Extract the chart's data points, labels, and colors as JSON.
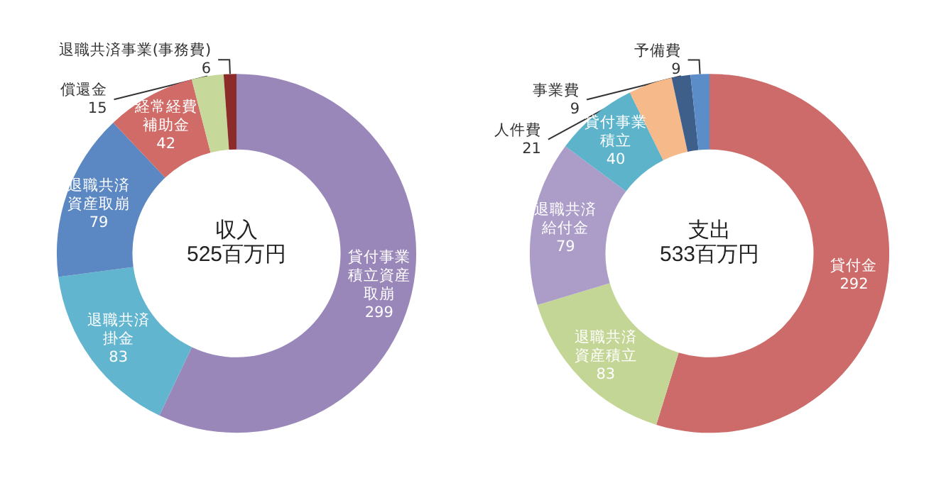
{
  "chart_data": [
    {
      "type": "donut",
      "title": "収入",
      "subtitle": "525百万円",
      "categories": [
        "貸付事業積立資産取崩",
        "退職共済掛金",
        "退職共済資産取崩",
        "経常経費補助金",
        "償還金",
        "退職共済事業(事務費)"
      ],
      "values": [
        299,
        83,
        79,
        42,
        15,
        6
      ],
      "colors": [
        "#9a87b9",
        "#62b5cf",
        "#5b87c2",
        "#d06b68",
        "#c6d99b",
        "#8c2c2a"
      ],
      "data_labels": true,
      "legend": false
    },
    {
      "type": "donut",
      "title": "支出",
      "subtitle": "533百万円",
      "categories": [
        "貸付金",
        "退職共済資産積立",
        "退職共済給付金",
        "貸付事業積立",
        "人件費",
        "事業費",
        "予備費"
      ],
      "values": [
        292,
        83,
        79,
        40,
        21,
        9,
        9
      ],
      "colors": [
        "#cc6b69",
        "#c4d696",
        "#ab9dc8",
        "#5db4ca",
        "#f6b98a",
        "#3f5f8b",
        "#5b8ec9"
      ],
      "data_labels": true,
      "legend": false
    }
  ]
}
